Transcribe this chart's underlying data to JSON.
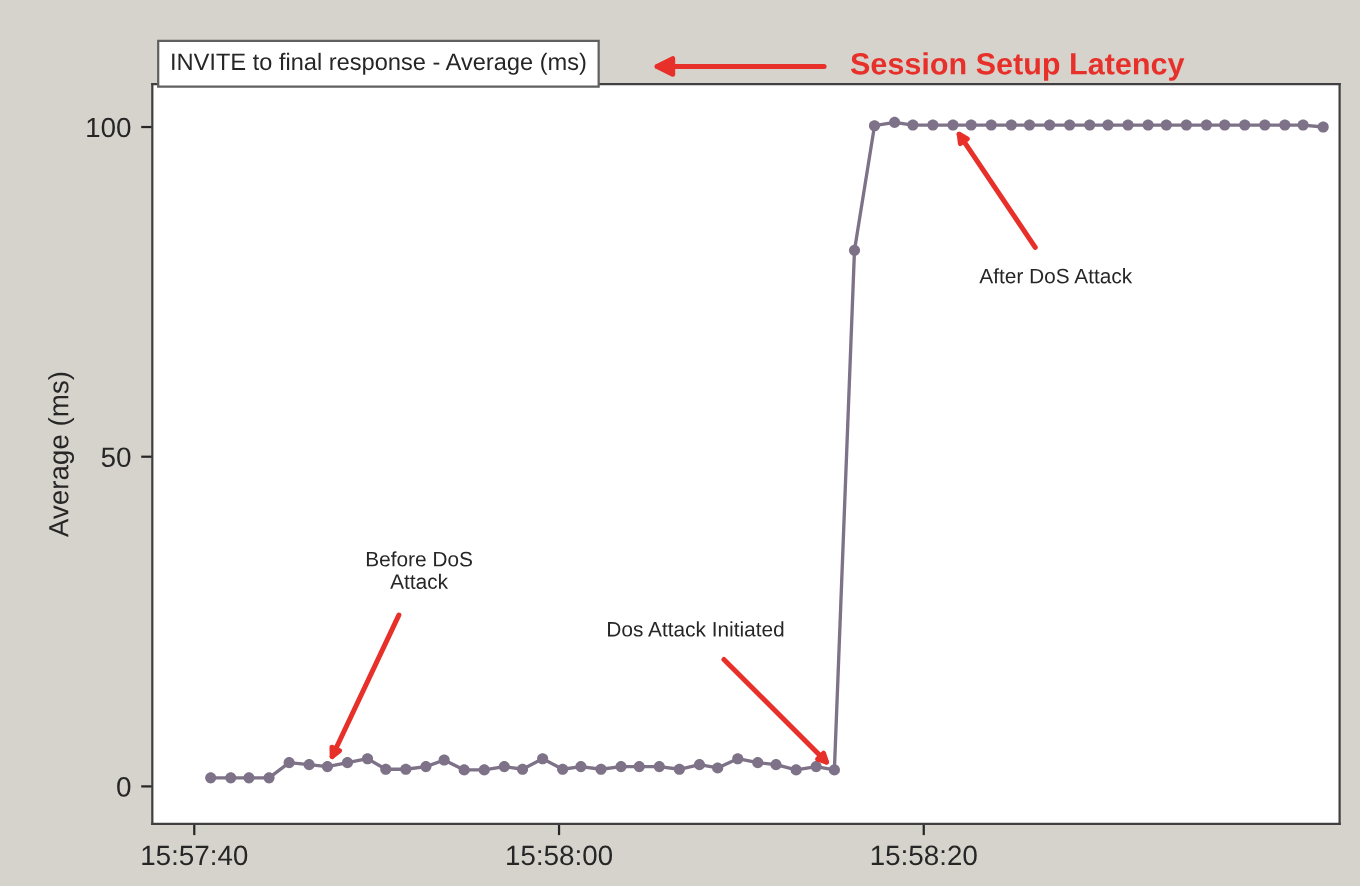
{
  "chart_data": {
    "type": "line",
    "title": "INVITE to final response - Average (ms)",
    "ylabel": "Average (ms)",
    "annotations": [
      "Session Setup Latency",
      {
        "text": "Before DoS\nAttack",
        "x": 15.963139,
        "y": 3.0
      },
      {
        "text": "Dos Attack Initiated",
        "x": 15.970861,
        "y": 2.5
      },
      {
        "text": "After DoS Attack",
        "x": 15.972667,
        "y": 100.3
      }
    ],
    "series": [
      {
        "color": "#7d7287",
        "x": [
          15.961361,
          15.961667,
          15.961944,
          15.96225,
          15.962556,
          15.962861,
          15.963139,
          15.963444,
          15.96375,
          15.964028,
          15.964333,
          15.964639,
          15.964917,
          15.965222,
          15.965528,
          15.965833,
          15.966111,
          15.966417,
          15.966722,
          15.967,
          15.967306,
          15.967611,
          15.967889,
          15.968194,
          15.9685,
          15.968806,
          15.969083,
          15.969389,
          15.969694,
          15.969972,
          15.970278,
          15.970583,
          15.970861,
          15.971167,
          15.971472,
          15.971778,
          15.972056,
          15.972361,
          15.972667,
          15.972944,
          15.97325,
          15.973556,
          15.973833,
          15.974139,
          15.974444,
          15.97475,
          15.975028,
          15.975333,
          15.975639,
          15.975917,
          15.976222,
          15.976528,
          15.976806,
          15.977111,
          15.977417,
          15.977722,
          15.978,
          15.978306
        ],
        "values": [
          1.3,
          1.3,
          1.3,
          1.3,
          3.6,
          3.3,
          3.0,
          3.6,
          4.2,
          2.6,
          2.6,
          3.0,
          4.0,
          2.5,
          2.5,
          3.0,
          2.6,
          4.2,
          2.6,
          3.0,
          2.6,
          3.0,
          3.0,
          3.0,
          2.6,
          3.3,
          2.8,
          4.2,
          3.6,
          3.3,
          2.5,
          3.0,
          2.5,
          81.3,
          100.2,
          100.7,
          100.3,
          100.3,
          100.3,
          100.3,
          100.3,
          100.3,
          100.3,
          100.3,
          100.3,
          100.3,
          100.3,
          100.3,
          100.3,
          100.3,
          100.3,
          100.3,
          100.3,
          100.3,
          100.3,
          100.3,
          100.3,
          100.0
        ]
      }
    ],
    "xlim": [
      15.960472,
      15.978556
    ],
    "ylim": [
      -5.7,
      106.5
    ],
    "xticks": [
      {
        "value": 15.961111,
        "label": "15:57:40"
      },
      {
        "value": 15.966667,
        "label": "15:58:00"
      },
      {
        "value": 15.972222,
        "label": "15:58:20"
      }
    ],
    "yticks": [
      0,
      50,
      100
    ],
    "grid": false,
    "legend": false,
    "marker": "circle",
    "line_style": "solid"
  }
}
